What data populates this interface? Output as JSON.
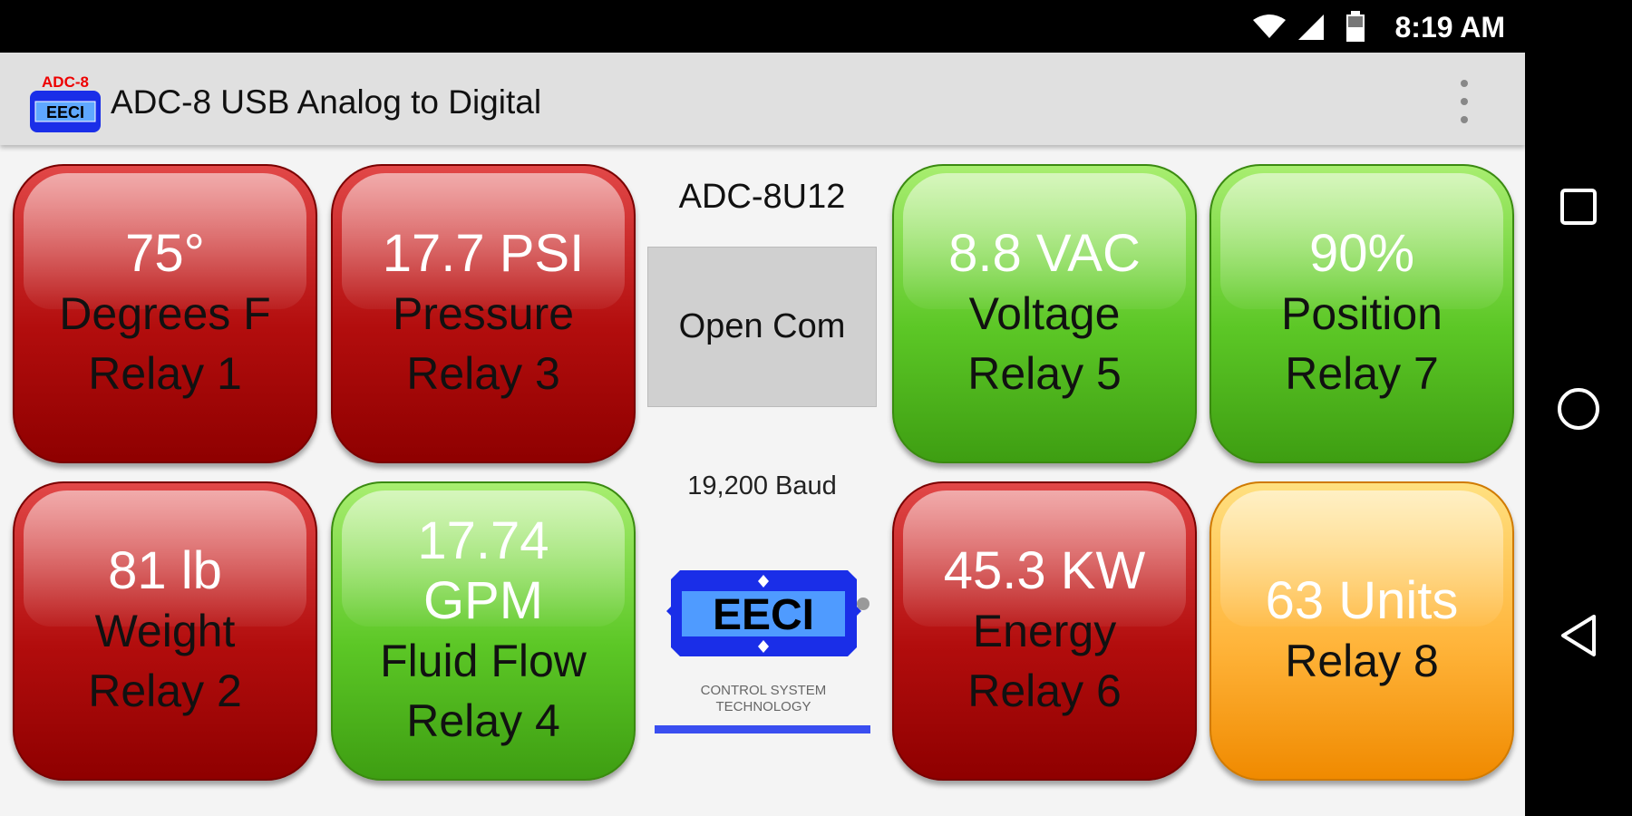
{
  "status_bar": {
    "time": "8:19 AM",
    "icons": [
      "wifi-icon",
      "signal-icon",
      "battery-icon"
    ]
  },
  "app_bar": {
    "title": "ADC-8 USB Analog to Digital",
    "logo_text": "ADC-8",
    "logo_sub": "EECI",
    "menu_icon": "overflow-menu-icon"
  },
  "tiles": [
    {
      "value": "75°",
      "label": "Degrees F",
      "relay": "Relay 1",
      "color": "red"
    },
    {
      "value": "17.7 PSI",
      "label": "Pressure",
      "relay": "Relay 3",
      "color": "red"
    },
    {
      "value": "81 lb",
      "label": "Weight",
      "relay": "Relay 2",
      "color": "red"
    },
    {
      "value": "17.74 GPM",
      "label": "Fluid Flow",
      "relay": "Relay 4",
      "color": "green"
    },
    {
      "value": "8.8 VAC",
      "label": "Voltage",
      "relay": "Relay 5",
      "color": "green"
    },
    {
      "value": "90%",
      "label": "Position",
      "relay": "Relay 7",
      "color": "green"
    },
    {
      "value": "45.3 KW",
      "label": "Energy",
      "relay": "Relay 6",
      "color": "red"
    },
    {
      "value": "63 Units",
      "label": "",
      "relay": "Relay 8",
      "color": "orange"
    }
  ],
  "center": {
    "model": "ADC-8U12",
    "open_button": "Open Com",
    "baud": "19,200 Baud",
    "logo_name": "EECI",
    "logo_tagline": "CONTROL SYSTEM TECHNOLOGY"
  },
  "colors": {
    "red": "#b20d0d",
    "green": "#5cc726",
    "orange": "#ffb43a",
    "logo_blue": "#1a2ee8"
  }
}
